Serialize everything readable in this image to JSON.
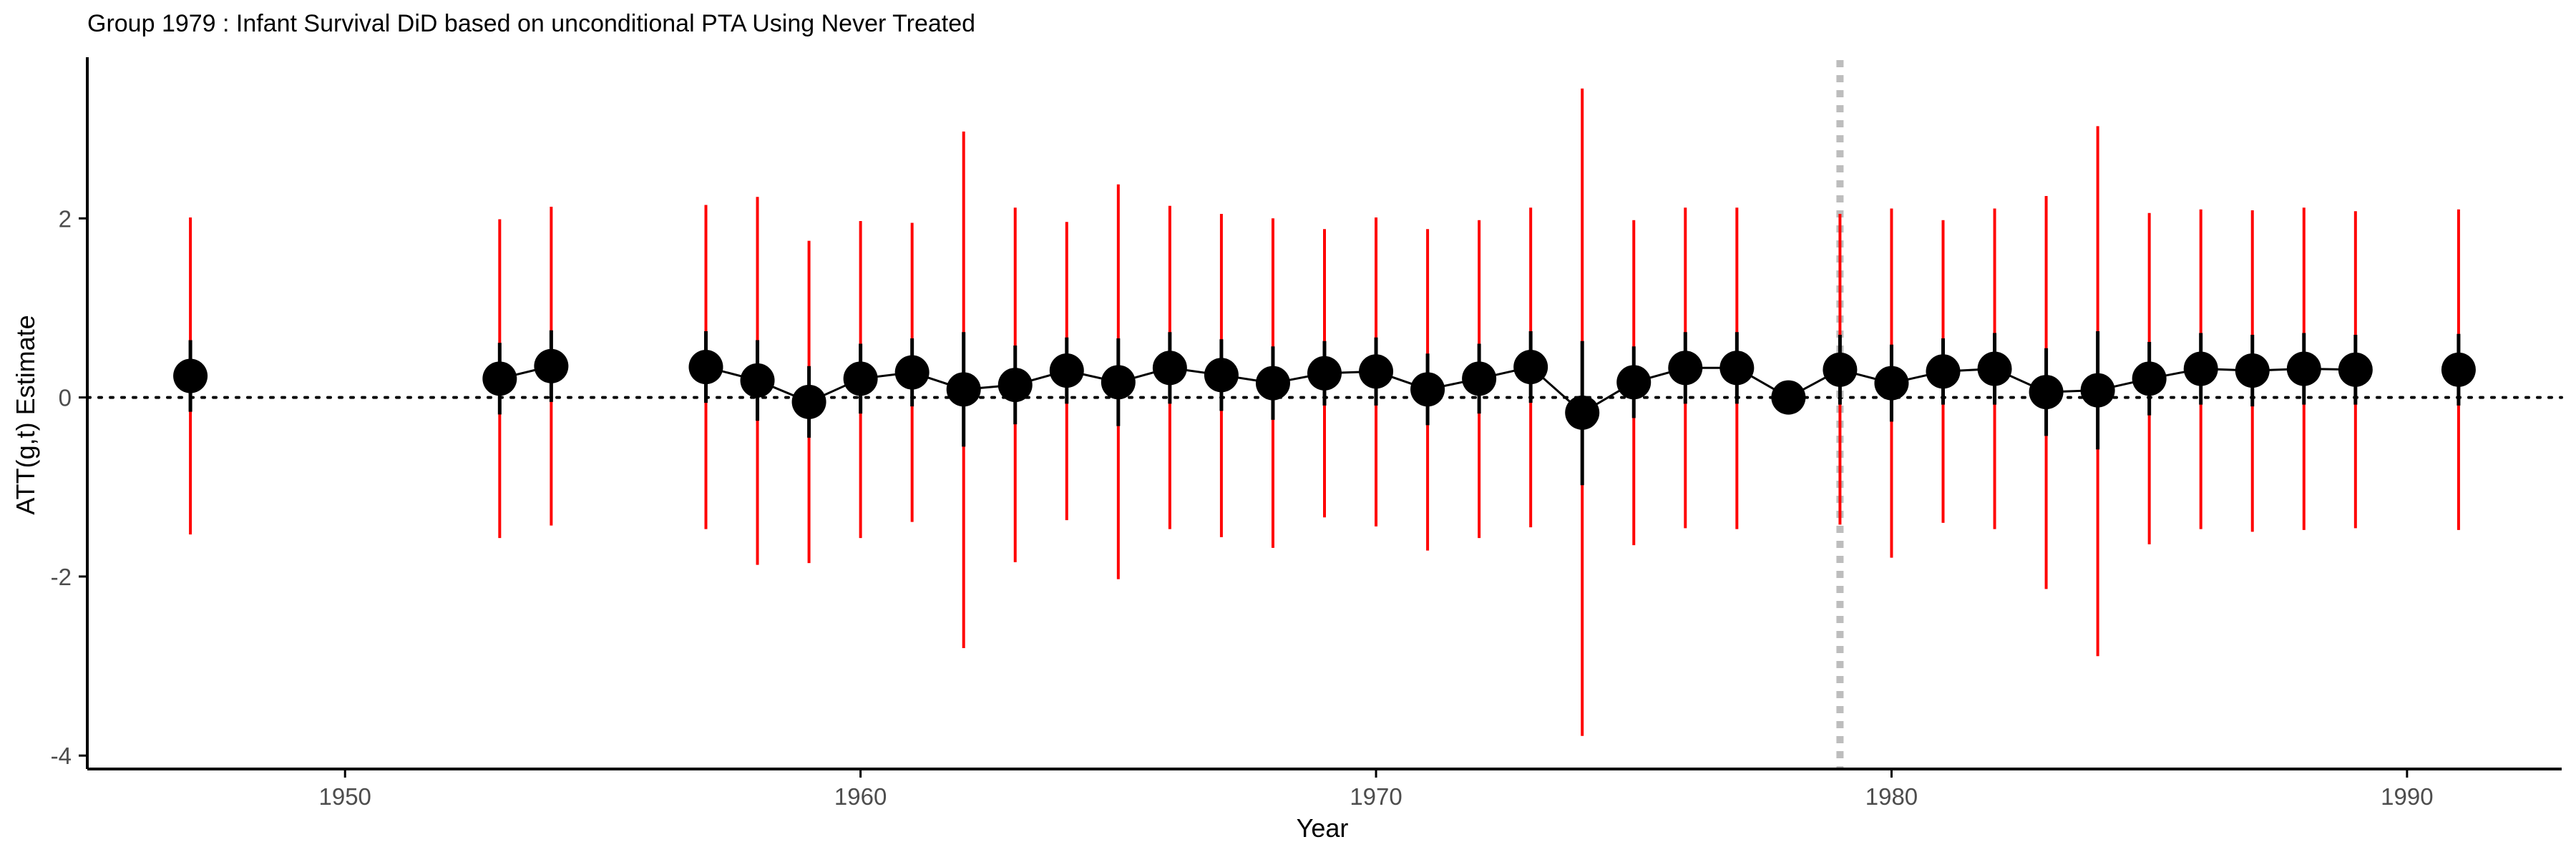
{
  "chart_data": {
    "type": "scatter",
    "title": "Group 1979 : Infant Survival DiD based on unconditional PTA Using Never Treated",
    "xlabel": "Year",
    "ylabel": "ATT(g,t) Estimate",
    "xlim": [
      1945,
      1993
    ],
    "ylim": [
      -4.15,
      3.8
    ],
    "xticks": [
      1950,
      1960,
      1970,
      1980,
      1990
    ],
    "yticks": [
      -4,
      -2,
      0,
      2
    ],
    "grid": false,
    "legend": "none",
    "reference_lines": {
      "y_zero": 0,
      "treatment_year": 1979
    },
    "series": [
      {
        "values": [
          {
            "x": 1947,
            "y": 0.24,
            "ci_low": -1.53,
            "ci_high": 2.01,
            "se_low": -0.16,
            "se_high": 0.64
          },
          {
            "x": 1953,
            "y": 0.21,
            "ci_low": -1.57,
            "ci_high": 1.99,
            "se_low": -0.19,
            "se_high": 0.61
          },
          {
            "x": 1954,
            "y": 0.35,
            "ci_low": -1.43,
            "ci_high": 2.13,
            "se_low": -0.05,
            "se_high": 0.75
          },
          {
            "x": 1957,
            "y": 0.34,
            "ci_low": -1.47,
            "ci_high": 2.15,
            "se_low": -0.06,
            "se_high": 0.74
          },
          {
            "x": 1958,
            "y": 0.19,
            "ci_low": -1.87,
            "ci_high": 2.24,
            "se_low": -0.26,
            "se_high": 0.64
          },
          {
            "x": 1959,
            "y": -0.05,
            "ci_low": -1.85,
            "ci_high": 1.75,
            "se_low": -0.45,
            "se_high": 0.35
          },
          {
            "x": 1960,
            "y": 0.21,
            "ci_low": -1.57,
            "ci_high": 1.97,
            "se_low": -0.18,
            "se_high": 0.6
          },
          {
            "x": 1961,
            "y": 0.28,
            "ci_low": -1.39,
            "ci_high": 1.95,
            "se_low": -0.1,
            "se_high": 0.66
          },
          {
            "x": 1962,
            "y": 0.09,
            "ci_low": -2.8,
            "ci_high": 2.97,
            "se_low": -0.55,
            "se_high": 0.73
          },
          {
            "x": 1963,
            "y": 0.14,
            "ci_low": -1.84,
            "ci_high": 2.12,
            "se_low": -0.3,
            "se_high": 0.58
          },
          {
            "x": 1964,
            "y": 0.3,
            "ci_low": -1.37,
            "ci_high": 1.96,
            "se_low": -0.07,
            "se_high": 0.67
          },
          {
            "x": 1965,
            "y": 0.17,
            "ci_low": -2.03,
            "ci_high": 2.38,
            "se_low": -0.32,
            "se_high": 0.66
          },
          {
            "x": 1966,
            "y": 0.33,
            "ci_low": -1.47,
            "ci_high": 2.14,
            "se_low": -0.07,
            "se_high": 0.73
          },
          {
            "x": 1967,
            "y": 0.25,
            "ci_low": -1.56,
            "ci_high": 2.05,
            "se_low": -0.15,
            "se_high": 0.65
          },
          {
            "x": 1968,
            "y": 0.16,
            "ci_low": -1.68,
            "ci_high": 2.0,
            "se_low": -0.25,
            "se_high": 0.57
          },
          {
            "x": 1969,
            "y": 0.27,
            "ci_low": -1.34,
            "ci_high": 1.88,
            "se_low": -0.09,
            "se_high": 0.63
          },
          {
            "x": 1970,
            "y": 0.29,
            "ci_low": -1.44,
            "ci_high": 2.01,
            "se_low": -0.09,
            "se_high": 0.67
          },
          {
            "x": 1971,
            "y": 0.09,
            "ci_low": -1.71,
            "ci_high": 1.88,
            "se_low": -0.31,
            "se_high": 0.49
          },
          {
            "x": 1972,
            "y": 0.21,
            "ci_low": -1.57,
            "ci_high": 1.98,
            "se_low": -0.18,
            "se_high": 0.6
          },
          {
            "x": 1973,
            "y": 0.34,
            "ci_low": -1.45,
            "ci_high": 2.12,
            "se_low": -0.06,
            "se_high": 0.74
          },
          {
            "x": 1974,
            "y": -0.17,
            "ci_low": -3.78,
            "ci_high": 3.45,
            "se_low": -0.98,
            "se_high": 0.63
          },
          {
            "x": 1975,
            "y": 0.17,
            "ci_low": -1.65,
            "ci_high": 1.98,
            "se_low": -0.23,
            "se_high": 0.57
          },
          {
            "x": 1976,
            "y": 0.33,
            "ci_low": -1.46,
            "ci_high": 2.12,
            "se_low": -0.07,
            "se_high": 0.73
          },
          {
            "x": 1977,
            "y": 0.33,
            "ci_low": -1.47,
            "ci_high": 2.12,
            "se_low": -0.07,
            "se_high": 0.73
          },
          {
            "x": 1978,
            "y": 0.0,
            "ci_low": 0.0,
            "ci_high": 0.0,
            "se_low": 0.0,
            "se_high": 0.0
          },
          {
            "x": 1979,
            "y": 0.31,
            "ci_low": -1.42,
            "ci_high": 2.05,
            "se_low": -0.08,
            "se_high": 0.7
          },
          {
            "x": 1980,
            "y": 0.16,
            "ci_low": -1.79,
            "ci_high": 2.11,
            "se_low": -0.27,
            "se_high": 0.59
          },
          {
            "x": 1981,
            "y": 0.29,
            "ci_low": -1.4,
            "ci_high": 1.98,
            "se_low": -0.08,
            "se_high": 0.66
          },
          {
            "x": 1982,
            "y": 0.32,
            "ci_low": -1.47,
            "ci_high": 2.11,
            "se_low": -0.08,
            "se_high": 0.72
          },
          {
            "x": 1983,
            "y": 0.06,
            "ci_low": -2.14,
            "ci_high": 2.25,
            "se_low": -0.43,
            "se_high": 0.55
          },
          {
            "x": 1984,
            "y": 0.08,
            "ci_low": -2.89,
            "ci_high": 3.03,
            "se_low": -0.58,
            "se_high": 0.74
          },
          {
            "x": 1985,
            "y": 0.21,
            "ci_low": -1.64,
            "ci_high": 2.06,
            "se_low": -0.2,
            "se_high": 0.62
          },
          {
            "x": 1986,
            "y": 0.32,
            "ci_low": -1.47,
            "ci_high": 2.1,
            "se_low": -0.08,
            "se_high": 0.72
          },
          {
            "x": 1987,
            "y": 0.3,
            "ci_low": -1.5,
            "ci_high": 2.09,
            "se_low": -0.1,
            "se_high": 0.7
          },
          {
            "x": 1988,
            "y": 0.32,
            "ci_low": -1.48,
            "ci_high": 2.12,
            "se_low": -0.08,
            "se_high": 0.72
          },
          {
            "x": 1989,
            "y": 0.31,
            "ci_low": -1.46,
            "ci_high": 2.08,
            "se_low": -0.08,
            "se_high": 0.7
          },
          {
            "x": 1991,
            "y": 0.31,
            "ci_low": -1.48,
            "ci_high": 2.1,
            "se_low": -0.09,
            "se_high": 0.71
          }
        ]
      }
    ],
    "colors": {
      "point": "#000000",
      "ci_bar": "#ff0000",
      "se_bar": "#000000",
      "zero_line": "#000000",
      "treatment_line": "#bdbdbd"
    }
  }
}
